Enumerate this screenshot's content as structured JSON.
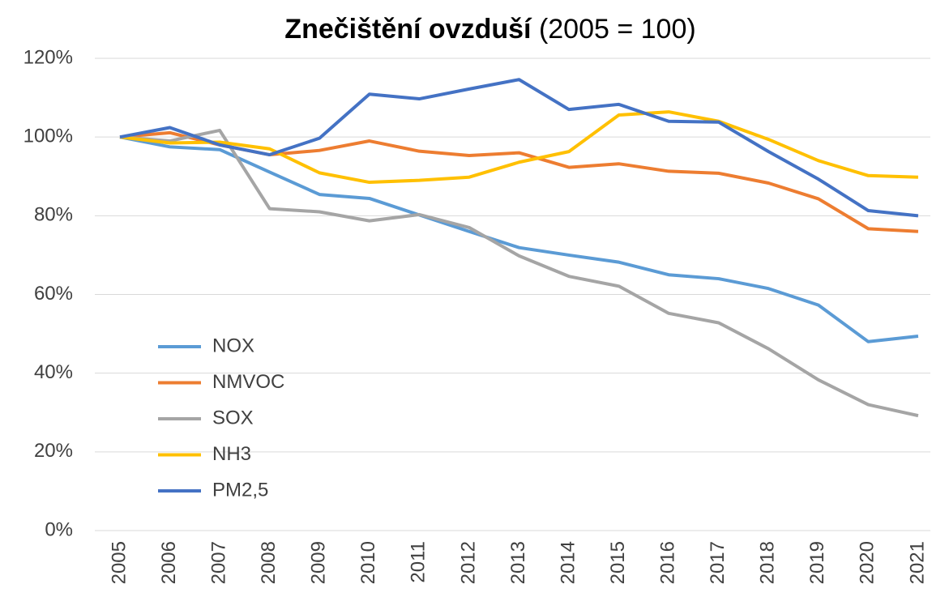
{
  "chart_data": {
    "type": "line",
    "title": "Znečištění ovzduší",
    "subtitle": "(2005 = 100)",
    "categories": [
      "2005",
      "2006",
      "2007",
      "2008",
      "2009",
      "2010",
      "2011",
      "2012",
      "2013",
      "2014",
      "2015",
      "2016",
      "2017",
      "2018",
      "2019",
      "2020",
      "2021"
    ],
    "series": [
      {
        "name": "NOX",
        "color": "#5b9bd5",
        "values": [
          100,
          97.5,
          96.8,
          91.1,
          85.4,
          84.4,
          80.2,
          76,
          71.9,
          70,
          68.2,
          65,
          64,
          61.5,
          57.3,
          48,
          49.4
        ]
      },
      {
        "name": "NMVOC",
        "color": "#ed7d31",
        "values": [
          100,
          101.1,
          98,
          95.5,
          96.6,
          99,
          96.4,
          95.3,
          96,
          92.3,
          93.2,
          91.3,
          90.8,
          88.3,
          84.3,
          76.7,
          76
        ]
      },
      {
        "name": "SOX",
        "color": "#a5a5a5",
        "values": [
          100,
          99,
          101.7,
          81.8,
          81,
          78.7,
          80.3,
          77,
          69.8,
          64.6,
          62.1,
          55.2,
          52.8,
          46.2,
          38.3,
          32,
          29.2
        ]
      },
      {
        "name": "NH3",
        "color": "#ffc000",
        "values": [
          100,
          98.5,
          98.7,
          97,
          90.9,
          88.5,
          89,
          89.8,
          93.6,
          96.3,
          105.6,
          106.4,
          104,
          99.4,
          94,
          90.2,
          89.8
        ]
      },
      {
        "name": "PM2,5",
        "color": "#4472c4",
        "values": [
          100,
          102.4,
          98,
          95.5,
          99.7,
          110.9,
          109.7,
          112.2,
          114.6,
          107,
          108.3,
          104,
          103.8,
          96.3,
          89.3,
          81.3,
          80
        ]
      }
    ],
    "ylim": [
      0,
      120
    ],
    "yticks": [
      {
        "value": 0,
        "label": "0%"
      },
      {
        "value": 20,
        "label": "20%"
      },
      {
        "value": 40,
        "label": "40%"
      },
      {
        "value": 60,
        "label": "60%"
      },
      {
        "value": 80,
        "label": "80%"
      },
      {
        "value": 100,
        "label": "100%"
      },
      {
        "value": 120,
        "label": "120%"
      }
    ],
    "grid": true,
    "legend": "lower left"
  }
}
